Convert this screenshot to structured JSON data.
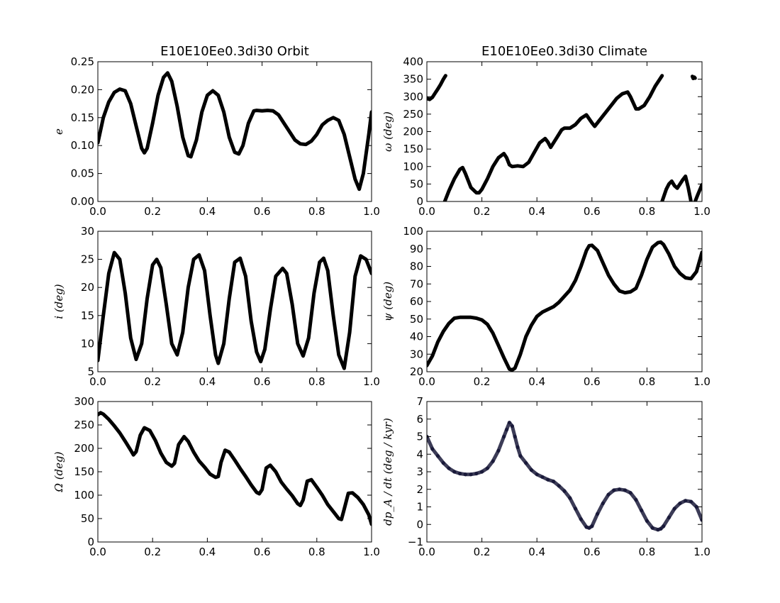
{
  "figure": {
    "titles": [
      "E10E10Ee0.3di30 Orbit",
      "E10E10Ee0.3di30 Climate"
    ]
  },
  "chart_data": [
    {
      "type": "line",
      "title": "E10E10Ee0.3di30 Orbit",
      "ylabel": "e",
      "xlabel": "",
      "xlim": [
        0.0,
        1.0
      ],
      "ylim": [
        0.0,
        0.25
      ],
      "xticks": [
        "0.0",
        "0.2",
        "0.4",
        "0.6",
        "0.8",
        "1.0"
      ],
      "yticks": [
        "0.00",
        "0.05",
        "0.10",
        "0.15",
        "0.20",
        "0.25"
      ],
      "color": "#000000",
      "series": [
        {
          "x": [
            0.0,
            0.02,
            0.04,
            0.06,
            0.08,
            0.1,
            0.12,
            0.14,
            0.16,
            0.17,
            0.18,
            0.2,
            0.22,
            0.24,
            0.255,
            0.27,
            0.29,
            0.31,
            0.33,
            0.34,
            0.36,
            0.38,
            0.4,
            0.42,
            0.44,
            0.46,
            0.48,
            0.5,
            0.515,
            0.53,
            0.55,
            0.57,
            0.58,
            0.6,
            0.62,
            0.64,
            0.66,
            0.68,
            0.7,
            0.72,
            0.74,
            0.76,
            0.78,
            0.8,
            0.82,
            0.84,
            0.86,
            0.88,
            0.9,
            0.92,
            0.94,
            0.955,
            0.97,
            0.99,
            1.0
          ],
          "y": [
            0.105,
            0.15,
            0.178,
            0.195,
            0.201,
            0.198,
            0.175,
            0.135,
            0.095,
            0.087,
            0.095,
            0.14,
            0.19,
            0.222,
            0.23,
            0.215,
            0.17,
            0.115,
            0.082,
            0.08,
            0.11,
            0.16,
            0.19,
            0.198,
            0.19,
            0.16,
            0.115,
            0.088,
            0.085,
            0.1,
            0.14,
            0.162,
            0.163,
            0.162,
            0.163,
            0.162,
            0.155,
            0.14,
            0.125,
            0.11,
            0.103,
            0.102,
            0.108,
            0.12,
            0.137,
            0.145,
            0.15,
            0.145,
            0.12,
            0.08,
            0.04,
            0.022,
            0.05,
            0.12,
            0.16
          ]
        }
      ]
    },
    {
      "type": "line",
      "title": "E10E10Ee0.3di30 Climate",
      "ylabel": "ω (deg)",
      "xlabel": "",
      "xlim": [
        0.0,
        1.0
      ],
      "ylim": [
        0,
        400
      ],
      "xticks": [
        "0.0",
        "0.2",
        "0.4",
        "0.6",
        "0.8",
        "1.0"
      ],
      "yticks": [
        "0",
        "50",
        "100",
        "150",
        "200",
        "250",
        "300",
        "350",
        "400"
      ],
      "color": "#000000",
      "series": [
        {
          "x": [
            0.0,
            0.01,
            0.02,
            0.03,
            0.04,
            0.05,
            0.06,
            0.068
          ],
          "y": [
            295,
            292,
            298,
            310,
            322,
            335,
            350,
            360
          ]
        },
        {
          "x": [
            0.065,
            0.08,
            0.1,
            0.12,
            0.13,
            0.14,
            0.16,
            0.18,
            0.19,
            0.2,
            0.22,
            0.24,
            0.26,
            0.28,
            0.29,
            0.3,
            0.31,
            0.33,
            0.35,
            0.37,
            0.39,
            0.41,
            0.43,
            0.44,
            0.45,
            0.47,
            0.49,
            0.5,
            0.52,
            0.54,
            0.56,
            0.58,
            0.6,
            0.61,
            0.63,
            0.65,
            0.67,
            0.69,
            0.71,
            0.73,
            0.74,
            0.76,
            0.77,
            0.79,
            0.81,
            0.83,
            0.855
          ],
          "y": [
            0,
            30,
            65,
            92,
            97,
            80,
            40,
            25,
            25,
            35,
            65,
            100,
            125,
            137,
            125,
            105,
            100,
            102,
            100,
            112,
            140,
            168,
            180,
            170,
            155,
            180,
            205,
            210,
            210,
            220,
            238,
            248,
            225,
            215,
            235,
            255,
            275,
            295,
            308,
            313,
            300,
            265,
            265,
            275,
            300,
            330,
            360
          ]
        },
        {
          "x": [
            0.855,
            0.87,
            0.88,
            0.89,
            0.9,
            0.91,
            0.92,
            0.93,
            0.94,
            0.95,
            0.96
          ],
          "y": [
            0,
            35,
            50,
            58,
            45,
            38,
            50,
            62,
            72,
            40,
            0
          ]
        },
        {
          "x": [
            0.965,
            0.968,
            0.972,
            0.975
          ],
          "y": [
            358,
            352,
            356,
            353
          ]
        },
        {
          "x": [
            0.975,
            0.985,
            1.0
          ],
          "y": [
            0,
            20,
            48
          ]
        }
      ]
    },
    {
      "type": "line",
      "title": "",
      "ylabel": "i (deg)",
      "xlabel": "",
      "xlim": [
        0.0,
        1.0
      ],
      "ylim": [
        5,
        30
      ],
      "xticks": [
        "0.0",
        "0.2",
        "0.4",
        "0.6",
        "0.8",
        "1.0"
      ],
      "yticks": [
        "5",
        "10",
        "15",
        "20",
        "25",
        "30"
      ],
      "color": "#000000",
      "series": [
        {
          "x": [
            0.0,
            0.02,
            0.04,
            0.06,
            0.08,
            0.1,
            0.12,
            0.14,
            0.16,
            0.18,
            0.2,
            0.215,
            0.23,
            0.25,
            0.27,
            0.29,
            0.31,
            0.33,
            0.35,
            0.37,
            0.39,
            0.41,
            0.43,
            0.44,
            0.46,
            0.48,
            0.5,
            0.52,
            0.54,
            0.56,
            0.58,
            0.595,
            0.61,
            0.63,
            0.65,
            0.675,
            0.69,
            0.71,
            0.73,
            0.75,
            0.77,
            0.79,
            0.81,
            0.825,
            0.84,
            0.86,
            0.88,
            0.9,
            0.92,
            0.94,
            0.96,
            0.98,
            1.0
          ],
          "y": [
            7.0,
            15.0,
            22.5,
            26.2,
            25.0,
            19.0,
            11.0,
            7.2,
            10.0,
            18.0,
            24.0,
            25.0,
            23.5,
            17.0,
            10.0,
            8.0,
            12.0,
            20.0,
            25.0,
            25.8,
            23.0,
            15.0,
            8.0,
            6.5,
            10.0,
            18.0,
            24.5,
            25.2,
            22.0,
            14.0,
            8.5,
            6.8,
            9.0,
            16.0,
            22.0,
            23.4,
            22.5,
            17.0,
            10.0,
            7.8,
            11.0,
            19.0,
            24.5,
            25.2,
            23.0,
            15.0,
            8.0,
            5.6,
            12.0,
            22.0,
            25.6,
            25.0,
            22.5
          ]
        }
      ]
    },
    {
      "type": "line",
      "title": "",
      "ylabel": "ψ (deg)",
      "xlabel": "",
      "xlim": [
        0.0,
        1.0
      ],
      "ylim": [
        20,
        100
      ],
      "xticks": [
        "0.0",
        "0.2",
        "0.4",
        "0.6",
        "0.8",
        "1.0"
      ],
      "yticks": [
        "20",
        "30",
        "40",
        "50",
        "60",
        "70",
        "80",
        "90",
        "100"
      ],
      "color": "#000000",
      "series": [
        {
          "x": [
            0.0,
            0.02,
            0.04,
            0.06,
            0.08,
            0.1,
            0.12,
            0.14,
            0.16,
            0.18,
            0.2,
            0.22,
            0.24,
            0.26,
            0.28,
            0.3,
            0.31,
            0.32,
            0.34,
            0.36,
            0.38,
            0.4,
            0.42,
            0.44,
            0.46,
            0.48,
            0.5,
            0.52,
            0.54,
            0.56,
            0.58,
            0.59,
            0.6,
            0.62,
            0.64,
            0.66,
            0.68,
            0.7,
            0.72,
            0.74,
            0.76,
            0.78,
            0.8,
            0.82,
            0.84,
            0.85,
            0.86,
            0.88,
            0.9,
            0.92,
            0.94,
            0.96,
            0.98,
            1.0
          ],
          "y": [
            23.5,
            29.0,
            37.0,
            43.0,
            47.5,
            50.5,
            51.0,
            51.0,
            51.0,
            50.5,
            49.5,
            47.0,
            42.0,
            35.0,
            28.0,
            21.5,
            21.0,
            22.0,
            30.0,
            40.0,
            46.5,
            51.5,
            54.0,
            55.5,
            57.0,
            59.5,
            63.0,
            66.5,
            72.0,
            80.0,
            89.0,
            91.8,
            92.0,
            89.0,
            82.0,
            75.0,
            70.0,
            66.0,
            65.0,
            65.5,
            67.5,
            75.0,
            84.0,
            91.0,
            93.5,
            93.8,
            92.5,
            87.0,
            80.0,
            76.0,
            73.5,
            73.0,
            77.0,
            88.0
          ]
        }
      ]
    },
    {
      "type": "line",
      "title": "",
      "ylabel": "Ω (deg)",
      "xlabel": "",
      "xlim": [
        0.0,
        1.0
      ],
      "ylim": [
        0,
        300
      ],
      "xticks": [
        "0.0",
        "0.2",
        "0.4",
        "0.6",
        "0.8",
        "1.0"
      ],
      "yticks": [
        "0",
        "50",
        "100",
        "150",
        "200",
        "250",
        "300"
      ],
      "color": "#000000",
      "series": [
        {
          "x": [
            0.0,
            0.01,
            0.02,
            0.04,
            0.06,
            0.08,
            0.1,
            0.12,
            0.13,
            0.14,
            0.155,
            0.17,
            0.19,
            0.21,
            0.23,
            0.25,
            0.27,
            0.28,
            0.295,
            0.315,
            0.33,
            0.35,
            0.37,
            0.39,
            0.41,
            0.43,
            0.44,
            0.45,
            0.465,
            0.48,
            0.5,
            0.52,
            0.54,
            0.56,
            0.58,
            0.59,
            0.6,
            0.615,
            0.63,
            0.65,
            0.67,
            0.69,
            0.71,
            0.73,
            0.74,
            0.75,
            0.765,
            0.78,
            0.8,
            0.82,
            0.84,
            0.86,
            0.88,
            0.89,
            0.9,
            0.915,
            0.93,
            0.95,
            0.97,
            0.99,
            1.0
          ],
          "y": [
            272,
            276,
            273,
            262,
            248,
            233,
            215,
            196,
            186,
            193,
            228,
            244,
            238,
            217,
            190,
            170,
            162,
            168,
            208,
            225,
            215,
            192,
            173,
            160,
            145,
            138,
            140,
            170,
            196,
            192,
            175,
            157,
            140,
            122,
            106,
            103,
            112,
            158,
            164,
            150,
            128,
            113,
            99,
            82,
            78,
            90,
            130,
            133,
            117,
            100,
            80,
            65,
            50,
            48,
            70,
            104,
            105,
            95,
            80,
            58,
            38
          ]
        }
      ]
    },
    {
      "type": "scatter",
      "title": "",
      "ylabel": "dp_A / dt (deg / kyr)",
      "xlabel": "",
      "xlim": [
        0.0,
        1.0
      ],
      "ylim": [
        -1,
        7
      ],
      "xticks": [
        "0.0",
        "0.2",
        "0.4",
        "0.6",
        "0.8",
        "1.0"
      ],
      "yticks": [
        "−1",
        "0",
        "1",
        "2",
        "3",
        "4",
        "5",
        "6",
        "7"
      ],
      "color": "#1a1a3a",
      "series": [
        {
          "x": [
            0.0,
            0.02,
            0.04,
            0.06,
            0.08,
            0.1,
            0.12,
            0.14,
            0.16,
            0.18,
            0.2,
            0.22,
            0.24,
            0.26,
            0.28,
            0.29,
            0.3,
            0.31,
            0.32,
            0.33,
            0.34,
            0.36,
            0.38,
            0.4,
            0.42,
            0.44,
            0.46,
            0.48,
            0.5,
            0.52,
            0.54,
            0.56,
            0.58,
            0.59,
            0.6,
            0.62,
            0.64,
            0.66,
            0.68,
            0.7,
            0.72,
            0.74,
            0.76,
            0.78,
            0.8,
            0.82,
            0.84,
            0.85,
            0.86,
            0.88,
            0.9,
            0.92,
            0.94,
            0.96,
            0.98,
            1.0
          ],
          "y": [
            5.0,
            4.3,
            3.9,
            3.5,
            3.2,
            3.0,
            2.9,
            2.85,
            2.85,
            2.9,
            3.0,
            3.2,
            3.6,
            4.2,
            5.0,
            5.4,
            5.8,
            5.6,
            5.0,
            4.4,
            3.9,
            3.5,
            3.1,
            2.85,
            2.7,
            2.55,
            2.45,
            2.2,
            1.9,
            1.5,
            0.9,
            0.3,
            -0.15,
            -0.2,
            -0.1,
            0.6,
            1.2,
            1.7,
            1.95,
            2.0,
            1.95,
            1.8,
            1.4,
            0.8,
            0.2,
            -0.2,
            -0.3,
            -0.25,
            -0.1,
            0.4,
            0.9,
            1.2,
            1.35,
            1.3,
            1.0,
            0.25
          ]
        }
      ]
    }
  ]
}
